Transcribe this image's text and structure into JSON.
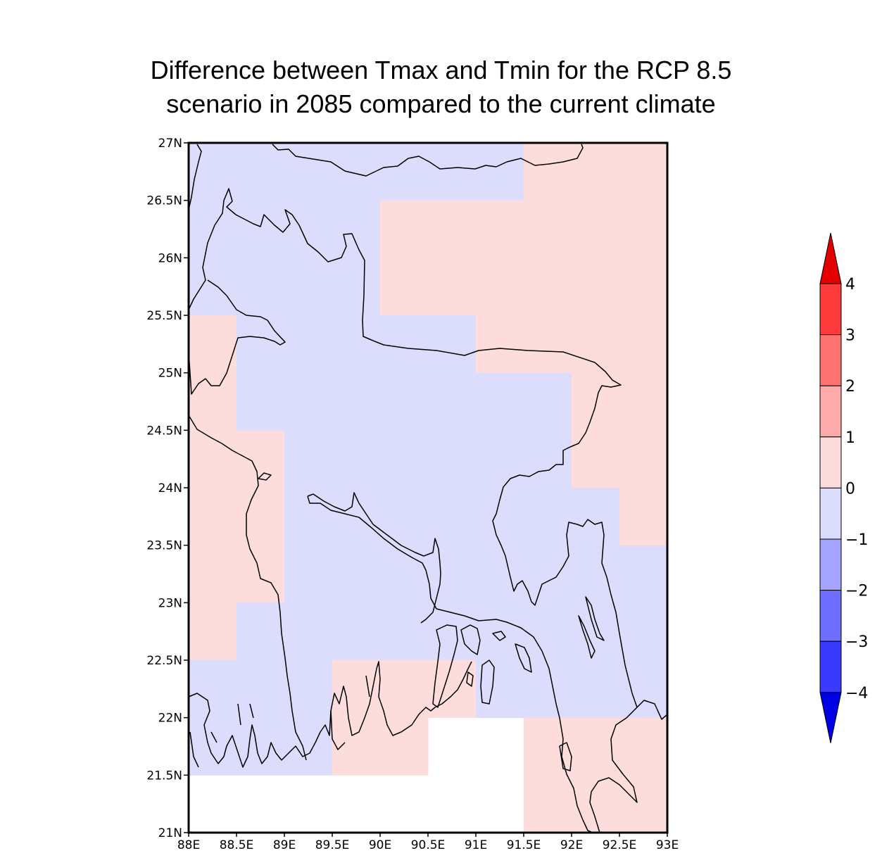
{
  "title": {
    "line1": "Difference between Tmax and Tmin for the RCP 8.5",
    "line2": "scenario in 2085 compared to the current climate"
  },
  "chart_data": {
    "type": "heatmap",
    "lon_range": [
      88,
      93
    ],
    "lat_range": [
      21,
      27
    ],
    "grid_step": 0.5,
    "y_ticks": [
      "27N",
      "26.5N",
      "26N",
      "25.5N",
      "25N",
      "24.5N",
      "24N",
      "23.5N",
      "23N",
      "22.5N",
      "22N",
      "21.5N",
      "21N"
    ],
    "x_ticks": [
      "88E",
      "88.5E",
      "89E",
      "89.5E",
      "90E",
      "90.5E",
      "91E",
      "91.5E",
      "92E",
      "92.5E",
      "93E"
    ],
    "cells": [
      {
        "lon0": 88,
        "lon1": 91.5,
        "lat0": 26.5,
        "lat1": 27,
        "bin": "-1_0"
      },
      {
        "lon0": 91.5,
        "lon1": 93,
        "lat0": 26.5,
        "lat1": 27,
        "bin": "0_1"
      },
      {
        "lon0": 88,
        "lon1": 90,
        "lat0": 25.5,
        "lat1": 26.5,
        "bin": "-1_0"
      },
      {
        "lon0": 90,
        "lon1": 93,
        "lat0": 25.5,
        "lat1": 26.5,
        "bin": "0_1"
      },
      {
        "lon0": 88,
        "lon1": 88.5,
        "lat0": 25,
        "lat1": 25.5,
        "bin": "0_1"
      },
      {
        "lon0": 88.5,
        "lon1": 91,
        "lat0": 25,
        "lat1": 25.5,
        "bin": "-1_0"
      },
      {
        "lon0": 91,
        "lon1": 93,
        "lat0": 25,
        "lat1": 25.5,
        "bin": "0_1"
      },
      {
        "lon0": 88,
        "lon1": 88.5,
        "lat0": 24.5,
        "lat1": 25,
        "bin": "0_1"
      },
      {
        "lon0": 88.5,
        "lon1": 92,
        "lat0": 24.5,
        "lat1": 25,
        "bin": "-1_0"
      },
      {
        "lon0": 92,
        "lon1": 93,
        "lat0": 24.5,
        "lat1": 25,
        "bin": "0_1"
      },
      {
        "lon0": 88,
        "lon1": 89,
        "lat0": 24,
        "lat1": 24.5,
        "bin": "0_1"
      },
      {
        "lon0": 89,
        "lon1": 92,
        "lat0": 24,
        "lat1": 24.5,
        "bin": "-1_0"
      },
      {
        "lon0": 92,
        "lon1": 93,
        "lat0": 24,
        "lat1": 24.5,
        "bin": "0_1"
      },
      {
        "lon0": 88,
        "lon1": 89,
        "lat0": 23.5,
        "lat1": 24,
        "bin": "0_1"
      },
      {
        "lon0": 89,
        "lon1": 92.5,
        "lat0": 23.5,
        "lat1": 24,
        "bin": "-1_0"
      },
      {
        "lon0": 92.5,
        "lon1": 93,
        "lat0": 23.5,
        "lat1": 24,
        "bin": "0_1"
      },
      {
        "lon0": 88,
        "lon1": 89,
        "lat0": 23,
        "lat1": 23.5,
        "bin": "0_1"
      },
      {
        "lon0": 89,
        "lon1": 93,
        "lat0": 23,
        "lat1": 23.5,
        "bin": "-1_0"
      },
      {
        "lon0": 88,
        "lon1": 88.5,
        "lat0": 22.5,
        "lat1": 23,
        "bin": "0_1"
      },
      {
        "lon0": 88.5,
        "lon1": 93,
        "lat0": 22.5,
        "lat1": 23,
        "bin": "-1_0"
      },
      {
        "lon0": 88,
        "lon1": 89.5,
        "lat0": 22,
        "lat1": 22.5,
        "bin": "-1_0"
      },
      {
        "lon0": 89.5,
        "lon1": 91,
        "lat0": 22,
        "lat1": 22.5,
        "bin": "0_1"
      },
      {
        "lon0": 91,
        "lon1": 93,
        "lat0": 22,
        "lat1": 22.5,
        "bin": "-1_0"
      },
      {
        "lon0": 88,
        "lon1": 89.5,
        "lat0": 21.5,
        "lat1": 22,
        "bin": "-1_0"
      },
      {
        "lon0": 89.5,
        "lon1": 90.5,
        "lat0": 21.5,
        "lat1": 22,
        "bin": "0_1"
      },
      {
        "lon0": 91.5,
        "lon1": 93,
        "lat0": 21.5,
        "lat1": 22,
        "bin": "0_1"
      },
      {
        "lon0": 91.5,
        "lon1": 93,
        "lat0": 21,
        "lat1": 21.5,
        "bin": "0_1"
      }
    ],
    "colorbar": {
      "levels": [
        "4",
        "3",
        "2",
        "1",
        "0",
        "−1",
        "−2",
        "−3",
        "−4"
      ],
      "bins": [
        {
          "id": "gt4",
          "color": "#e50000"
        },
        {
          "id": "3_4",
          "color": "#ff3a3a"
        },
        {
          "id": "2_3",
          "color": "#ff7272"
        },
        {
          "id": "1_2",
          "color": "#ffaaaa"
        },
        {
          "id": "0_1",
          "color": "#fddddc"
        },
        {
          "id": "-1_0",
          "color": "#dcdcfc"
        },
        {
          "id": "-2_-1",
          "color": "#a5a5ff"
        },
        {
          "id": "-3_-2",
          "color": "#6e6eff"
        },
        {
          "id": "-4_-3",
          "color": "#3a3aff"
        },
        {
          "id": "lt-4",
          "color": "#0000e5"
        }
      ]
    },
    "outline_color": "#000000"
  }
}
